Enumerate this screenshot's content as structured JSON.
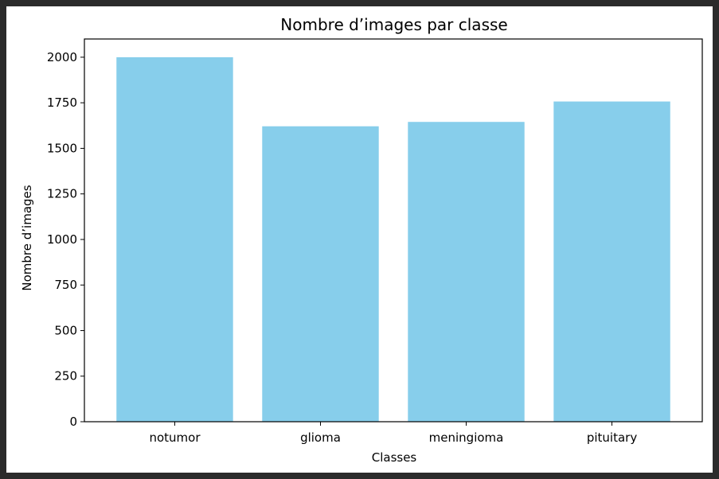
{
  "chart_data": {
    "type": "bar",
    "title": "Nombre d’images par classe",
    "xlabel": "Classes",
    "ylabel": "Nombre d’images",
    "categories": [
      "notumor",
      "glioma",
      "meningioma",
      "pituitary"
    ],
    "values": [
      2000,
      1621,
      1645,
      1757
    ],
    "ylim": [
      0,
      2100
    ],
    "yticks": [
      0,
      250,
      500,
      750,
      1000,
      1250,
      1500,
      1750,
      2000
    ],
    "bar_color": "#87ceeb",
    "grid": false,
    "legend": "none"
  }
}
